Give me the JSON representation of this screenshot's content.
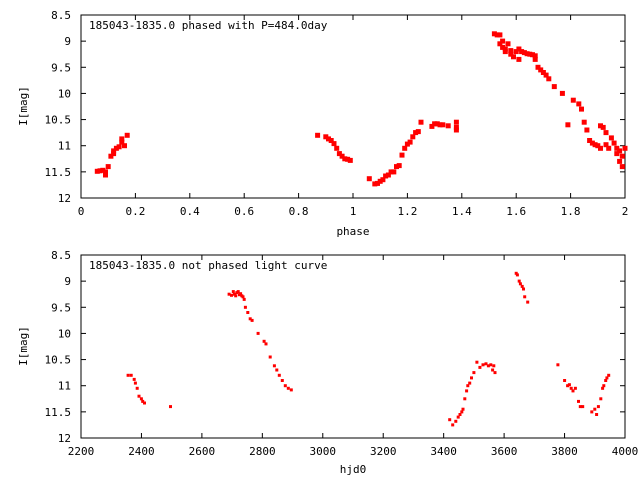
{
  "colors": {
    "points": "#ff0000",
    "axes": "#000000",
    "background": "#ffffff"
  },
  "chart_data": [
    {
      "type": "scatter",
      "title": "185043-1835.0 phased with P=484.0day",
      "xlabel": "phase",
      "ylabel": "I[mag]",
      "xlim": [
        0,
        2
      ],
      "ylim": [
        12,
        8.5
      ],
      "y_inverted": true,
      "grid": false,
      "xticks": [
        0,
        0.2,
        0.4,
        0.6,
        0.8,
        1,
        1.2,
        1.4,
        1.6,
        1.8,
        2
      ],
      "xtick_labels": [
        "0",
        "0.2",
        "0.4",
        "0.6",
        "0.8",
        "1",
        "1.2",
        "1.4",
        "1.6",
        "1.8",
        "2"
      ],
      "yticks": [
        8.5,
        9,
        9.5,
        10,
        10.5,
        11,
        11.5,
        12
      ],
      "ytick_labels": [
        "8.5",
        "9",
        "9.5",
        "10",
        "10.5",
        "11",
        "11.5",
        "12"
      ],
      "series": [
        {
          "marker": "filled-square",
          "points": [
            [
              0.06,
              11.49
            ],
            [
              0.07,
              11.48
            ],
            [
              0.08,
              11.47
            ],
            [
              0.09,
              11.5
            ],
            [
              0.09,
              11.56
            ],
            [
              0.1,
              11.4
            ],
            [
              0.11,
              11.2
            ],
            [
              0.12,
              11.15
            ],
            [
              0.12,
              11.1
            ],
            [
              0.13,
              11.05
            ],
            [
              0.14,
              11.02
            ],
            [
              0.15,
              10.93
            ],
            [
              0.15,
              10.87
            ],
            [
              0.16,
              11.0
            ],
            [
              0.17,
              10.8
            ],
            [
              0.87,
              10.8
            ],
            [
              0.9,
              10.83
            ],
            [
              0.91,
              10.87
            ],
            [
              0.92,
              10.9
            ],
            [
              0.93,
              10.96
            ],
            [
              0.94,
              11.05
            ],
            [
              0.95,
              11.15
            ],
            [
              0.96,
              11.2
            ],
            [
              0.97,
              11.25
            ],
            [
              0.98,
              11.26
            ],
            [
              0.99,
              11.28
            ],
            [
              1.06,
              11.63
            ],
            [
              1.08,
              11.73
            ],
            [
              1.09,
              11.72
            ],
            [
              1.1,
              11.68
            ],
            [
              1.11,
              11.65
            ],
            [
              1.12,
              11.58
            ],
            [
              1.13,
              11.56
            ],
            [
              1.14,
              11.5
            ],
            [
              1.15,
              11.5
            ],
            [
              1.16,
              11.4
            ],
            [
              1.17,
              11.38
            ],
            [
              1.18,
              11.18
            ],
            [
              1.19,
              11.05
            ],
            [
              1.2,
              10.97
            ],
            [
              1.21,
              10.93
            ],
            [
              1.22,
              10.83
            ],
            [
              1.23,
              10.75
            ],
            [
              1.24,
              10.73
            ],
            [
              1.25,
              10.55
            ],
            [
              1.29,
              10.63
            ],
            [
              1.3,
              10.58
            ],
            [
              1.31,
              10.58
            ],
            [
              1.32,
              10.6
            ],
            [
              1.33,
              10.6
            ],
            [
              1.35,
              10.62
            ],
            [
              1.38,
              10.55
            ],
            [
              1.38,
              10.65
            ],
            [
              1.38,
              10.7
            ],
            [
              1.52,
              8.86
            ],
            [
              1.53,
              8.88
            ],
            [
              1.54,
              8.88
            ],
            [
              1.54,
              9.05
            ],
            [
              1.55,
              9.0
            ],
            [
              1.55,
              9.12
            ],
            [
              1.56,
              9.15
            ],
            [
              1.56,
              9.2
            ],
            [
              1.57,
              9.05
            ],
            [
              1.58,
              9.25
            ],
            [
              1.58,
              9.18
            ],
            [
              1.59,
              9.3
            ],
            [
              1.6,
              9.2
            ],
            [
              1.61,
              9.15
            ],
            [
              1.61,
              9.35
            ],
            [
              1.62,
              9.2
            ],
            [
              1.63,
              9.22
            ],
            [
              1.64,
              9.24
            ],
            [
              1.65,
              9.25
            ],
            [
              1.66,
              9.26
            ],
            [
              1.67,
              9.28
            ],
            [
              1.67,
              9.35
            ],
            [
              1.68,
              9.5
            ],
            [
              1.69,
              9.55
            ],
            [
              1.7,
              9.6
            ],
            [
              1.71,
              9.65
            ],
            [
              1.72,
              9.72
            ],
            [
              1.74,
              9.87
            ],
            [
              1.77,
              10.0
            ],
            [
              1.79,
              10.6
            ],
            [
              1.81,
              10.13
            ],
            [
              1.83,
              10.2
            ],
            [
              1.84,
              10.3
            ],
            [
              1.85,
              10.55
            ],
            [
              1.86,
              10.7
            ],
            [
              1.87,
              10.9
            ],
            [
              1.88,
              10.95
            ],
            [
              1.89,
              10.98
            ],
            [
              1.9,
              11.0
            ],
            [
              1.91,
              10.62
            ],
            [
              1.91,
              11.05
            ],
            [
              1.92,
              10.65
            ],
            [
              1.93,
              10.75
            ],
            [
              1.93,
              10.98
            ],
            [
              1.94,
              11.05
            ],
            [
              1.95,
              10.85
            ],
            [
              1.96,
              10.95
            ],
            [
              1.97,
              11.15
            ],
            [
              1.97,
              11.05
            ],
            [
              1.98,
              11.1
            ],
            [
              1.98,
              11.3
            ],
            [
              1.99,
              11.2
            ],
            [
              1.99,
              11.4
            ],
            [
              2.0,
              11.05
            ]
          ]
        }
      ]
    },
    {
      "type": "scatter",
      "title": "185043-1835.0 not phased light curve",
      "xlabel": "hjd0",
      "ylabel": "I[mag]",
      "xlim": [
        2200,
        4000
      ],
      "ylim": [
        12,
        8.5
      ],
      "y_inverted": true,
      "grid": false,
      "xticks": [
        2200,
        2400,
        2600,
        2800,
        3000,
        3200,
        3400,
        3600,
        3800,
        4000
      ],
      "xtick_labels": [
        "2200",
        "2400",
        "2600",
        "2800",
        "3000",
        "3200",
        "3400",
        "3600",
        "3800",
        "4000"
      ],
      "yticks": [
        8.5,
        9,
        9.5,
        10,
        10.5,
        11,
        11.5,
        12
      ],
      "ytick_labels": [
        "8.5",
        "9",
        "9.5",
        "10",
        "10.5",
        "11",
        "11.5",
        "12"
      ],
      "series": [
        {
          "marker": "small-dot",
          "points": [
            [
              2356,
              10.8
            ],
            [
              2366,
              10.8
            ],
            [
              2376,
              10.88
            ],
            [
              2380,
              10.95
            ],
            [
              2386,
              11.05
            ],
            [
              2392,
              11.2
            ],
            [
              2400,
              11.25
            ],
            [
              2404,
              11.3
            ],
            [
              2410,
              11.33
            ],
            [
              2496,
              11.4
            ],
            [
              2690,
              9.25
            ],
            [
              2698,
              9.27
            ],
            [
              2704,
              9.2
            ],
            [
              2708,
              9.25
            ],
            [
              2712,
              9.28
            ],
            [
              2716,
              9.22
            ],
            [
              2720,
              9.2
            ],
            [
              2724,
              9.26
            ],
            [
              2728,
              9.24
            ],
            [
              2732,
              9.28
            ],
            [
              2736,
              9.3
            ],
            [
              2740,
              9.35
            ],
            [
              2744,
              9.5
            ],
            [
              2752,
              9.6
            ],
            [
              2760,
              9.72
            ],
            [
              2766,
              9.75
            ],
            [
              2786,
              10.0
            ],
            [
              2806,
              10.15
            ],
            [
              2812,
              10.2
            ],
            [
              2826,
              10.45
            ],
            [
              2840,
              10.62
            ],
            [
              2848,
              10.7
            ],
            [
              2856,
              10.8
            ],
            [
              2866,
              10.9
            ],
            [
              2876,
              11.0
            ],
            [
              2886,
              11.05
            ],
            [
              2896,
              11.08
            ],
            [
              3420,
              11.65
            ],
            [
              3430,
              11.75
            ],
            [
              3440,
              11.68
            ],
            [
              3448,
              11.6
            ],
            [
              3454,
              11.55
            ],
            [
              3460,
              11.5
            ],
            [
              3464,
              11.45
            ],
            [
              3470,
              11.25
            ],
            [
              3476,
              11.1
            ],
            [
              3480,
              11.0
            ],
            [
              3486,
              10.95
            ],
            [
              3492,
              10.85
            ],
            [
              3500,
              10.75
            ],
            [
              3510,
              10.55
            ],
            [
              3520,
              10.65
            ],
            [
              3530,
              10.6
            ],
            [
              3540,
              10.58
            ],
            [
              3548,
              10.62
            ],
            [
              3556,
              10.6
            ],
            [
              3562,
              10.7
            ],
            [
              3566,
              10.62
            ],
            [
              3570,
              10.75
            ],
            [
              3640,
              8.85
            ],
            [
              3644,
              8.88
            ],
            [
              3650,
              9.0
            ],
            [
              3654,
              9.05
            ],
            [
              3660,
              9.1
            ],
            [
              3664,
              9.15
            ],
            [
              3668,
              9.3
            ],
            [
              3678,
              9.4
            ],
            [
              3778,
              10.6
            ],
            [
              3800,
              10.9
            ],
            [
              3810,
              11.0
            ],
            [
              3816,
              10.98
            ],
            [
              3822,
              11.05
            ],
            [
              3828,
              11.1
            ],
            [
              3836,
              11.05
            ],
            [
              3846,
              11.3
            ],
            [
              3852,
              11.4
            ],
            [
              3860,
              11.4
            ],
            [
              3890,
              11.5
            ],
            [
              3900,
              11.45
            ],
            [
              3906,
              11.55
            ],
            [
              3912,
              11.4
            ],
            [
              3920,
              11.25
            ],
            [
              3926,
              11.05
            ],
            [
              3930,
              11.0
            ],
            [
              3936,
              10.9
            ],
            [
              3940,
              10.85
            ],
            [
              3946,
              10.8
            ]
          ]
        }
      ]
    }
  ]
}
